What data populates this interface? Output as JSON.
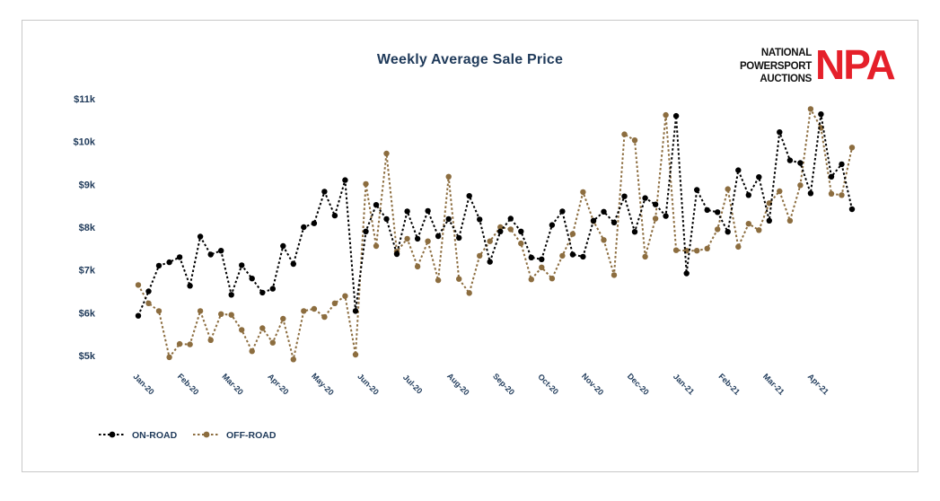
{
  "logo": {
    "lines": [
      "NATIONAL",
      "POWERSPORT",
      "AUCTIONS"
    ],
    "mark": "NPA"
  },
  "chart_data": {
    "type": "line",
    "title": "Weekly Average Sale Price",
    "xlabel": "",
    "ylabel": "",
    "ylim": [
      5000,
      11000
    ],
    "yticks": [
      {
        "value": 5000,
        "label": "$5k"
      },
      {
        "value": 6000,
        "label": "$6k"
      },
      {
        "value": 7000,
        "label": "$7k"
      },
      {
        "value": 8000,
        "label": "$8k"
      },
      {
        "value": 9000,
        "label": "$9k"
      },
      {
        "value": 10000,
        "label": "$10k"
      },
      {
        "value": 11000,
        "label": "$11k"
      }
    ],
    "xticks": [
      {
        "index": 0,
        "label": "Jan-20"
      },
      {
        "index": 4.3,
        "label": "Feb-20"
      },
      {
        "index": 8.6,
        "label": "Mar-20"
      },
      {
        "index": 13,
        "label": "Apr-20"
      },
      {
        "index": 17.3,
        "label": "May-20"
      },
      {
        "index": 21.7,
        "label": "Jun-20"
      },
      {
        "index": 26,
        "label": "Jul-20"
      },
      {
        "index": 30.4,
        "label": "Aug-20"
      },
      {
        "index": 34.8,
        "label": "Sep-20"
      },
      {
        "index": 39.1,
        "label": "Oct-20"
      },
      {
        "index": 43.4,
        "label": "Nov-20"
      },
      {
        "index": 47.8,
        "label": "Dec-20"
      },
      {
        "index": 52.2,
        "label": "Jan-21"
      },
      {
        "index": 56.6,
        "label": "Feb-21"
      },
      {
        "index": 60.9,
        "label": "Mar-21"
      },
      {
        "index": 65.2,
        "label": "Apr-21"
      }
    ],
    "grid": false,
    "legend_position": "bottom-left",
    "series": [
      {
        "name": "ON-ROAD",
        "color": "#000000",
        "values": [
          5930,
          6500,
          7100,
          7180,
          7300,
          6630,
          7780,
          7360,
          7450,
          6420,
          7110,
          6800,
          6470,
          6560,
          7560,
          7140,
          8000,
          8090,
          8830,
          8270,
          9100,
          6040,
          7900,
          8520,
          8190,
          7370,
          8370,
          7730,
          8380,
          7790,
          8190,
          7750,
          8730,
          8180,
          7190,
          7900,
          8200,
          7900,
          7290,
          7250,
          8050,
          8370,
          7360,
          7310,
          8150,
          8360,
          8110,
          8720,
          7890,
          8680,
          8530,
          8260,
          10600,
          6920,
          8870,
          8400,
          8350,
          7890,
          9330,
          8750,
          9170,
          8150,
          10220,
          9560,
          9500,
          8790,
          10640,
          9180,
          9470,
          8420
        ]
      },
      {
        "name": "OFF-ROAD",
        "color": "#8c6d3f",
        "values": [
          6650,
          6220,
          6040,
          4960,
          5270,
          5260,
          6040,
          5360,
          5970,
          5950,
          5600,
          5100,
          5640,
          5300,
          5860,
          4910,
          6040,
          6090,
          5900,
          6220,
          6390,
          5020,
          9010,
          7560,
          9720,
          7430,
          7730,
          7080,
          7670,
          6760,
          9180,
          6790,
          6460,
          7330,
          7670,
          8000,
          7950,
          7620,
          6780,
          7060,
          6800,
          7330,
          7840,
          8820,
          8140,
          7700,
          6880,
          10170,
          10030,
          7310,
          8200,
          10620,
          7460,
          7450,
          7450,
          7500,
          7950,
          8890,
          7540,
          8080,
          7930,
          8560,
          8840,
          8150,
          8980,
          10760,
          10320,
          8780,
          8750,
          9860
        ]
      }
    ]
  }
}
